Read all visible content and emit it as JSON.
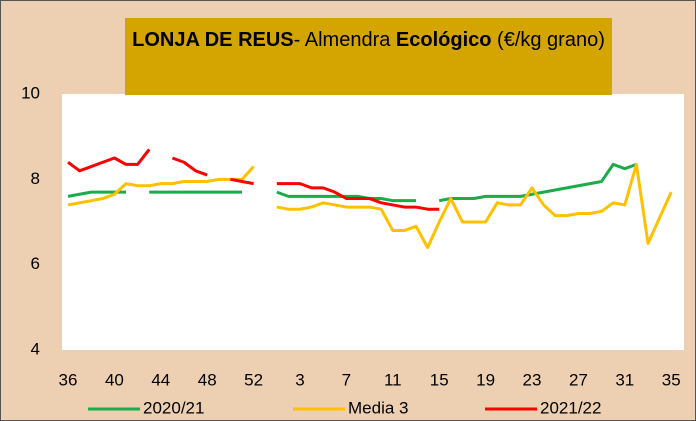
{
  "chart_data": {
    "type": "line",
    "title": [
      "LONJA DE REUS",
      "- Almendra ",
      "Ecológico",
      " (€/kg grano)"
    ],
    "categories": [
      "36",
      null,
      null,
      null,
      "40",
      null,
      null,
      null,
      "44",
      null,
      null,
      null,
      "48",
      null,
      null,
      null,
      "52",
      null,
      null,
      null,
      "3",
      null,
      null,
      null,
      "7",
      null,
      null,
      null,
      "11",
      null,
      null,
      null,
      "15",
      null,
      null,
      null,
      "19",
      null,
      null,
      null,
      "23",
      null,
      null,
      null,
      "27",
      null,
      null,
      null,
      "31",
      null,
      null,
      null,
      "35"
    ],
    "series": [
      {
        "name": "2020/21",
        "color": "#1aab4a",
        "values": [
          7.6,
          7.65,
          7.7,
          7.7,
          7.7,
          7.7,
          null,
          7.7,
          7.7,
          7.7,
          7.7,
          7.7,
          7.7,
          7.7,
          7.7,
          7.7,
          null,
          null,
          7.7,
          7.6,
          7.6,
          7.6,
          7.6,
          7.6,
          7.6,
          7.6,
          7.55,
          7.55,
          7.5,
          7.5,
          7.5,
          null,
          7.5,
          7.55,
          7.55,
          7.55,
          7.6,
          7.6,
          7.6,
          7.6,
          7.65,
          7.7,
          7.75,
          7.8,
          7.85,
          7.9,
          7.95,
          8.35,
          8.25,
          8.35,
          null,
          null,
          null
        ]
      },
      {
        "name": "Media 3",
        "color": "#ffc000",
        "values": [
          7.4,
          7.45,
          7.5,
          7.55,
          7.65,
          7.9,
          7.85,
          7.85,
          7.9,
          7.9,
          7.95,
          7.95,
          7.95,
          8.0,
          8.0,
          8.0,
          8.3,
          null,
          7.35,
          7.3,
          7.3,
          7.35,
          7.45,
          7.4,
          7.35,
          7.35,
          7.35,
          7.3,
          6.8,
          6.8,
          6.9,
          6.4,
          7.0,
          7.55,
          7.0,
          7.0,
          7.0,
          7.45,
          7.4,
          7.4,
          7.8,
          7.4,
          7.15,
          7.15,
          7.2,
          7.2,
          7.25,
          7.45,
          7.4,
          8.35,
          6.5,
          7.1,
          7.7
        ]
      },
      {
        "name": "2021/22",
        "color": "#ff0000",
        "values": [
          8.4,
          8.2,
          8.3,
          8.4,
          8.5,
          8.35,
          8.35,
          8.7,
          null,
          8.5,
          8.4,
          8.2,
          8.1,
          null,
          8.0,
          7.95,
          7.9,
          null,
          7.9,
          7.9,
          7.9,
          7.8,
          7.8,
          7.7,
          7.55,
          7.55,
          7.55,
          7.45,
          7.4,
          7.35,
          7.35,
          7.3,
          7.3,
          null,
          null,
          null,
          null,
          null,
          null,
          null,
          null,
          null,
          null,
          null,
          null,
          null,
          null,
          null,
          null,
          null,
          null,
          null,
          null
        ]
      }
    ],
    "ylim": [
      4,
      10
    ],
    "yticks": [
      4,
      6,
      8,
      10
    ],
    "grid": false,
    "legend": "bottom"
  }
}
